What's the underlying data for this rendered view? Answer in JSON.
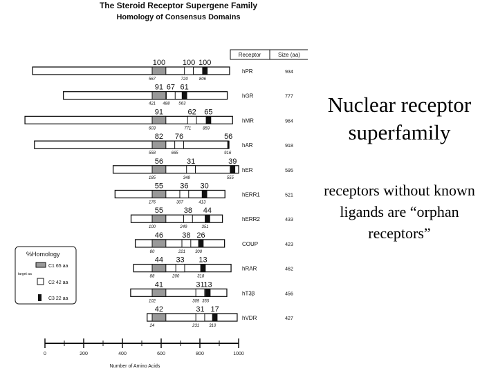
{
  "figure": {
    "title": "The Steroid Receptor Supergene Family",
    "subtitle": "Homology of Consensus Domains",
    "header": [
      "Receptor",
      "Size (aa)"
    ],
    "receptors": [
      {
        "name": "hPR",
        "size": "934",
        "homology": [
          "100",
          "100",
          "100"
        ],
        "positions": [
          "567",
          "720",
          "806"
        ]
      },
      {
        "name": "hGR",
        "size": "777",
        "homology": [
          "91",
          "67",
          "61"
        ],
        "positions": [
          "421",
          "488",
          "563"
        ]
      },
      {
        "name": "hMR",
        "size": "984",
        "homology": [
          "91",
          "62",
          "65"
        ],
        "positions": [
          "603",
          "771",
          "859"
        ]
      },
      {
        "name": "hAR",
        "size": "918",
        "homology": [
          "82",
          "76",
          "56"
        ],
        "positions": [
          "558",
          "665",
          "916"
        ]
      },
      {
        "name": "hER",
        "size": "595",
        "homology": [
          "56",
          "31",
          "39"
        ],
        "positions": [
          "185",
          "348",
          "555"
        ]
      },
      {
        "name": "hERR1",
        "size": "521",
        "homology": [
          "55",
          "36",
          "30"
        ],
        "positions": [
          "176",
          "307",
          "413"
        ]
      },
      {
        "name": "hERR2",
        "size": "433",
        "homology": [
          "55",
          "38",
          "44"
        ],
        "positions": [
          "100",
          "249",
          "351"
        ]
      },
      {
        "name": "COUP",
        "size": "423",
        "homology": [
          "46",
          "38",
          "26"
        ],
        "positions": [
          "80",
          "221",
          "300"
        ]
      },
      {
        "name": "hRAR",
        "size": "462",
        "homology": [
          "44",
          "33",
          "13"
        ],
        "positions": [
          "88",
          "200",
          "318"
        ]
      },
      {
        "name": "hT3β",
        "size": "456",
        "homology": [
          "41",
          "31",
          "13"
        ],
        "positions": [
          "102",
          "309",
          "355"
        ]
      },
      {
        "name": "hVDR",
        "size": "427",
        "homology": [
          "42",
          "31",
          "17"
        ],
        "positions": [
          "24",
          "231",
          "310"
        ]
      }
    ],
    "legend": {
      "title": "%Homology",
      "note": "target aa",
      "items": [
        "C1 65 aa",
        "C2 42 aa",
        "C3 22 aa"
      ]
    },
    "axis": {
      "ticks": [
        "0",
        "200",
        "400",
        "600",
        "800",
        "1000"
      ],
      "label": "Number of Amino Acids"
    }
  },
  "slide": {
    "title": "Nuclear receptor superfamily",
    "body": "receptors without known ligands are “orphan receptors”"
  }
}
